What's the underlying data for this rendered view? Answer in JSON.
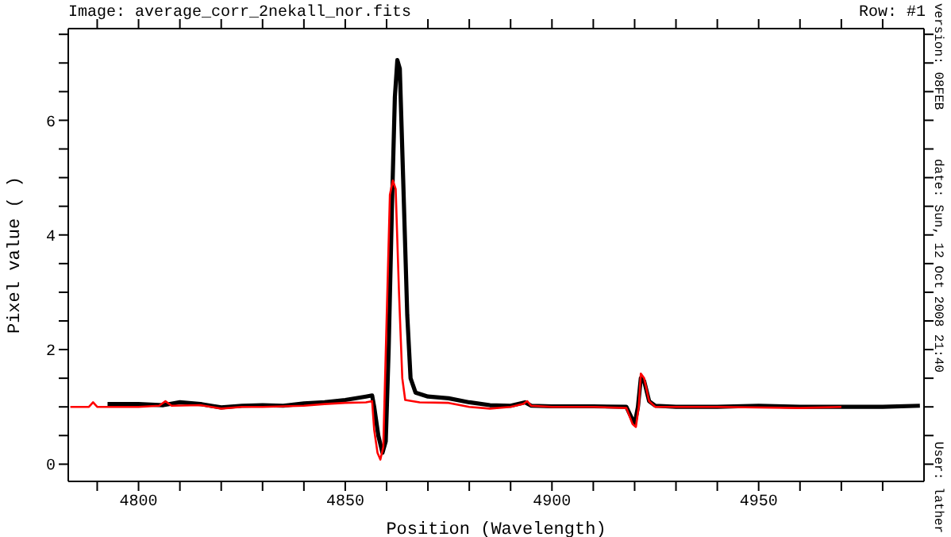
{
  "chart_data": {
    "type": "line",
    "title": "Image: average_corr_2nekall_nor.fits",
    "xlabel": "Position (Wavelength)",
    "ylabel": "Pixel value ( )",
    "annotations": [
      "Row: #1",
      "version: 08FEB",
      "date: Sun, 12 Oct 2008 21:40",
      "User: lather"
    ],
    "marker": "none",
    "xlim": [
      4783,
      4990
    ],
    "xticks": [
      {
        "value": 4790,
        "label": null
      },
      4800,
      {
        "value": 4810,
        "label": null
      },
      {
        "value": 4820,
        "label": null
      },
      {
        "value": 4830,
        "label": null
      },
      {
        "value": 4840,
        "label": null
      },
      4850,
      {
        "value": 4860,
        "label": null
      },
      {
        "value": 4870,
        "label": null
      },
      {
        "value": 4880,
        "label": null
      },
      {
        "value": 4890,
        "label": null
      },
      4900,
      {
        "value": 4910,
        "label": null
      },
      {
        "value": 4920,
        "label": null
      },
      {
        "value": 4930,
        "label": null
      },
      {
        "value": 4940,
        "label": null
      },
      4950,
      {
        "value": 4960,
        "label": null
      },
      {
        "value": 4970,
        "label": null
      },
      {
        "value": 4980,
        "label": null
      }
    ],
    "ylim": [
      -0.3,
      7.6
    ],
    "yticks": [
      0,
      {
        "value": 0.5,
        "label": null
      },
      {
        "value": 1,
        "label": null
      },
      {
        "value": 1.5,
        "label": null
      },
      2,
      {
        "value": 2.5,
        "label": null
      },
      {
        "value": 3,
        "label": null
      },
      {
        "value": 3.5,
        "label": null
      },
      4,
      {
        "value": 4.5,
        "label": null
      },
      {
        "value": 5,
        "label": null
      },
      {
        "value": 5.5,
        "label": null
      },
      6,
      {
        "value": 6.5,
        "label": null
      },
      {
        "value": 7,
        "label": null
      },
      {
        "value": 7.5,
        "label": null
      }
    ],
    "series": [
      {
        "color": "#000000",
        "x": [
          4792.5,
          4800,
          4806,
          4810,
          4815,
          4820,
          4825,
          4830,
          4835,
          4840,
          4845,
          4850,
          4855,
          4856.5,
          4857,
          4858,
          4859,
          4859.8,
          4860.5,
          4861.3,
          4862,
          4862.6,
          4863.2,
          4864,
          4865,
          4865.8,
          4867,
          4870,
          4875,
          4880,
          4885,
          4890,
          4893.5,
          4895,
          4900,
          4910,
          4918,
          4919,
          4920,
          4920.8,
          4921.5,
          4922.3,
          4923.5,
          4925,
          4930,
          4940,
          4950,
          4960,
          4970,
          4980,
          4989
        ],
        "values": [
          1.05,
          1.05,
          1.03,
          1.08,
          1.05,
          0.99,
          1.02,
          1.03,
          1.02,
          1.06,
          1.08,
          1.12,
          1.18,
          1.2,
          1.0,
          0.5,
          0.2,
          0.4,
          2.0,
          4.5,
          6.4,
          7.05,
          6.9,
          5.0,
          2.6,
          1.5,
          1.25,
          1.18,
          1.15,
          1.08,
          1.03,
          1.02,
          1.08,
          1.02,
          1.01,
          1.01,
          1.0,
          0.85,
          0.7,
          1.0,
          1.5,
          1.45,
          1.1,
          1.02,
          1.0,
          1.0,
          1.02,
          1.0,
          1.0,
          1.0,
          1.02
        ]
      },
      {
        "color": "#ff0000",
        "x": [
          4783.5,
          4788,
          4789,
          4790,
          4800,
          4805,
          4806.5,
          4808,
          4815,
          4820,
          4825,
          4830,
          4840,
          4845,
          4850,
          4855,
          4856.5,
          4857,
          4857.8,
          4858.5,
          4859.2,
          4860,
          4860.8,
          4861.5,
          4862.2,
          4863,
          4863.8,
          4864.5,
          4868,
          4875,
          4880,
          4885,
          4890,
          4893,
          4894,
          4895,
          4900,
          4910,
          4918,
          4919.5,
          4920.3,
          4921,
          4921.5,
          4922.3,
          4923.5,
          4925,
          4940,
          4960,
          4970
        ],
        "values": [
          1.0,
          1.0,
          1.08,
          1.0,
          1.0,
          1.02,
          1.1,
          1.02,
          1.03,
          0.97,
          1.0,
          1.0,
          1.02,
          1.05,
          1.07,
          1.08,
          1.1,
          0.6,
          0.2,
          0.08,
          0.3,
          2.5,
          4.7,
          4.95,
          4.8,
          3.0,
          1.5,
          1.12,
          1.08,
          1.07,
          1.0,
          0.97,
          1.0,
          1.05,
          1.1,
          1.02,
          1.0,
          1.0,
          0.98,
          0.7,
          0.65,
          1.0,
          1.58,
          1.5,
          1.1,
          1.0,
          1.0,
          0.98,
          1.0
        ]
      }
    ]
  }
}
